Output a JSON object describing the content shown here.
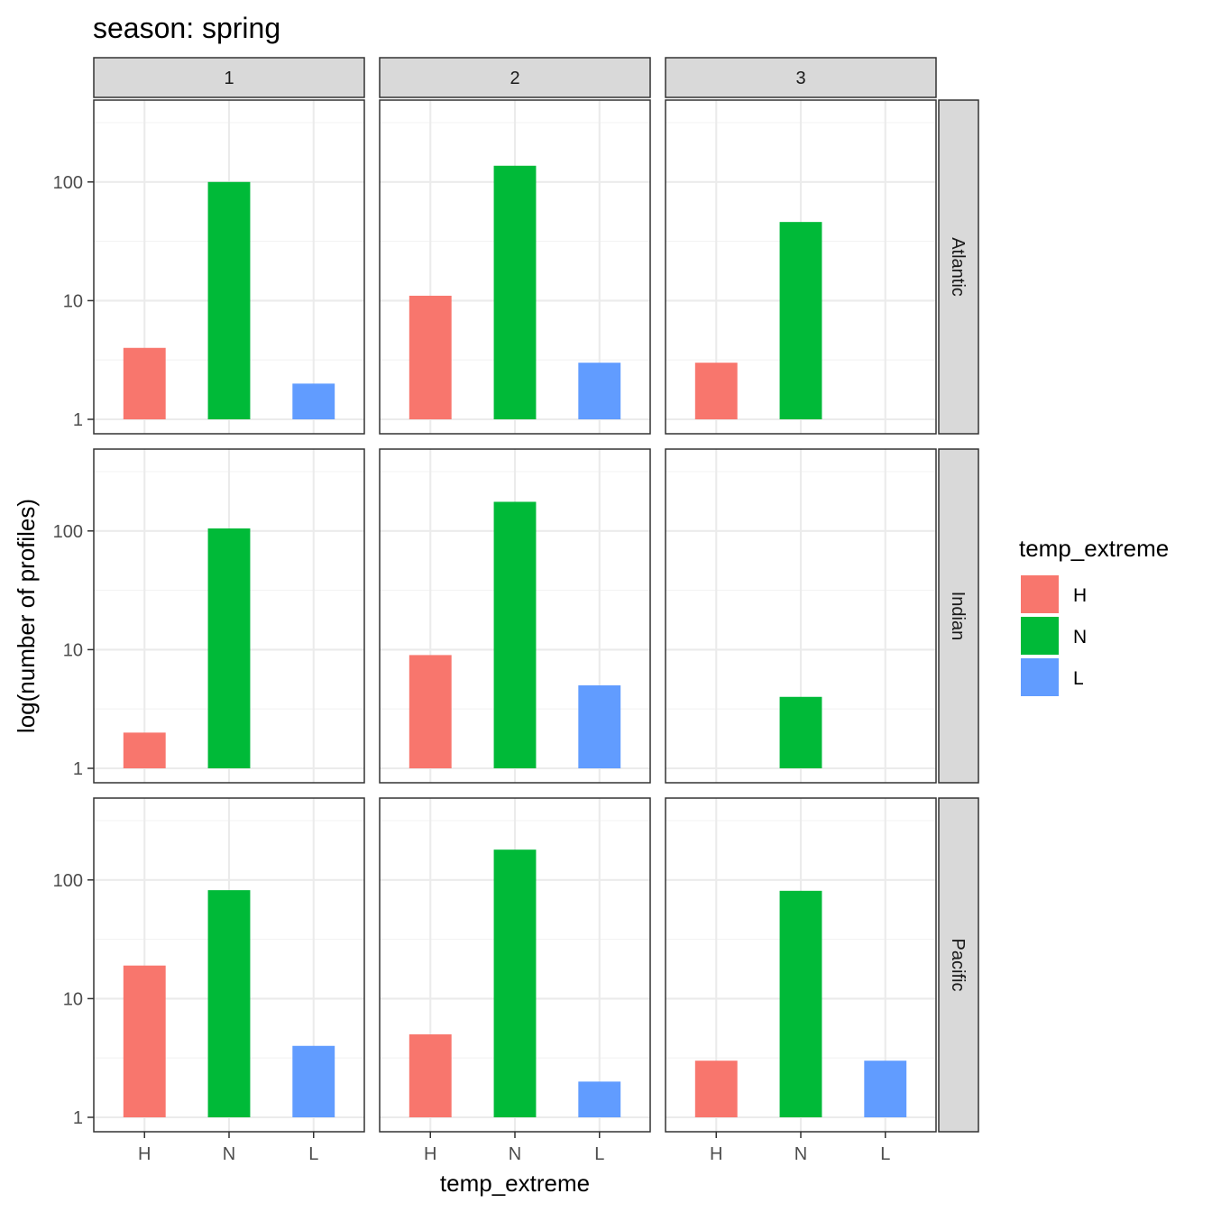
{
  "chart_data": {
    "type": "bar",
    "title": "season: spring",
    "xlabel": "temp_extreme",
    "ylabel": "log(number of profiles)",
    "y_scale": "log10",
    "ylim": [
      1,
      370
    ],
    "y_ticks": [
      1,
      10,
      100
    ],
    "y_tick_labels": [
      "1",
      "10",
      "100"
    ],
    "categories": [
      "H",
      "N",
      "L"
    ],
    "colors": {
      "H": "#F8766D",
      "N": "#00BA38",
      "L": "#619CFF"
    },
    "grid": true,
    "facet_cols": [
      "1",
      "2",
      "3"
    ],
    "facet_rows": [
      "Atlantic",
      "Indian",
      "Pacific"
    ],
    "legend": {
      "title": "temp_extreme",
      "position": "right",
      "items": [
        "H",
        "N",
        "L"
      ]
    },
    "panels": [
      {
        "row": "Atlantic",
        "col": "1",
        "values": {
          "H": 4,
          "N": 100,
          "L": 2
        }
      },
      {
        "row": "Atlantic",
        "col": "2",
        "values": {
          "H": 11,
          "N": 137,
          "L": 3
        }
      },
      {
        "row": "Atlantic",
        "col": "3",
        "values": {
          "H": 3,
          "N": 46,
          "L": null
        }
      },
      {
        "row": "Indian",
        "col": "1",
        "values": {
          "H": 2,
          "N": 105,
          "L": null
        }
      },
      {
        "row": "Indian",
        "col": "2",
        "values": {
          "H": 9,
          "N": 176,
          "L": 5
        }
      },
      {
        "row": "Indian",
        "col": "3",
        "values": {
          "H": null,
          "N": 4,
          "L": null
        }
      },
      {
        "row": "Pacific",
        "col": "1",
        "values": {
          "H": 19,
          "N": 82,
          "L": 4
        }
      },
      {
        "row": "Pacific",
        "col": "2",
        "values": {
          "H": 5,
          "N": 180,
          "L": 2
        }
      },
      {
        "row": "Pacific",
        "col": "3",
        "values": {
          "H": 3,
          "N": 81,
          "L": 3
        }
      }
    ]
  }
}
